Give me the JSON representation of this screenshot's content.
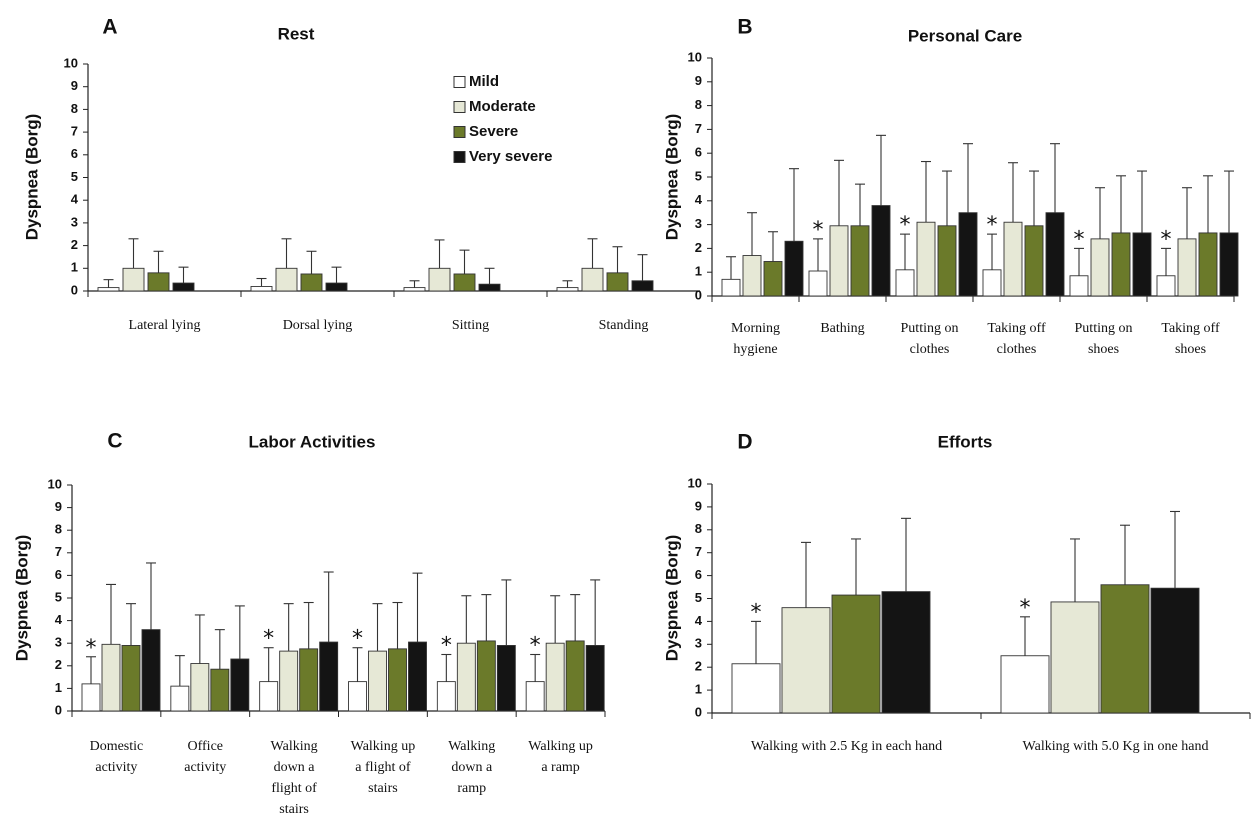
{
  "legend": {
    "entries": [
      {
        "label": "Mild",
        "color": "#ffffff"
      },
      {
        "label": "Moderate",
        "color": "#e6e8d6"
      },
      {
        "label": "Severe",
        "color": "#6b7a2a"
      },
      {
        "label": "Very severe",
        "color": "#141414"
      }
    ]
  },
  "chart_data": [
    {
      "type": "bar",
      "panel": "A",
      "title": "Rest",
      "ylabel": "Dyspnea (Borg)",
      "ylim": [
        0,
        10
      ],
      "yticks": [
        "0",
        "1",
        "2",
        "3",
        "4",
        "5",
        "6",
        "7",
        "8",
        "9",
        "10"
      ],
      "categories": [
        [
          "Lateral lying"
        ],
        [
          "Dorsal lying"
        ],
        [
          "Sitting"
        ],
        [
          "Standing"
        ]
      ],
      "series": [
        {
          "name": "Mild",
          "values": [
            0.15,
            0.2,
            0.15,
            0.15
          ],
          "err": [
            0.35,
            0.35,
            0.3,
            0.3
          ]
        },
        {
          "name": "Moderate",
          "values": [
            1.0,
            1.0,
            1.0,
            1.0
          ],
          "err": [
            1.3,
            1.3,
            1.25,
            1.3
          ]
        },
        {
          "name": "Severe",
          "values": [
            0.8,
            0.75,
            0.75,
            0.8
          ],
          "err": [
            0.95,
            1.0,
            1.05,
            1.15
          ]
        },
        {
          "name": "Very severe",
          "values": [
            0.35,
            0.35,
            0.3,
            0.45
          ],
          "err": [
            0.7,
            0.7,
            0.7,
            1.15
          ]
        }
      ],
      "stars": [
        "",
        "",
        "",
        ""
      ]
    },
    {
      "type": "bar",
      "panel": "B",
      "title": "Personal Care",
      "ylabel": "Dyspnea (Borg)",
      "ylim": [
        0,
        10
      ],
      "yticks": [
        "0",
        "1",
        "2",
        "3",
        "4",
        "5",
        "6",
        "7",
        "8",
        "9",
        "10"
      ],
      "categories": [
        [
          "Morning",
          "hygiene"
        ],
        [
          "Bathing"
        ],
        [
          "Putting on",
          "clothes"
        ],
        [
          "Taking off",
          "clothes"
        ],
        [
          "Putting on",
          "shoes"
        ],
        [
          "Taking off",
          "shoes"
        ]
      ],
      "series": [
        {
          "name": "Mild",
          "values": [
            0.7,
            1.05,
            1.1,
            1.1,
            0.85,
            0.85
          ],
          "err": [
            0.95,
            1.35,
            1.5,
            1.5,
            1.15,
            1.15
          ]
        },
        {
          "name": "Moderate",
          "values": [
            1.7,
            2.95,
            3.1,
            3.1,
            2.4,
            2.4
          ],
          "err": [
            1.8,
            2.75,
            2.55,
            2.5,
            2.15,
            2.15
          ]
        },
        {
          "name": "Severe",
          "values": [
            1.45,
            2.95,
            2.95,
            2.95,
            2.65,
            2.65
          ],
          "err": [
            1.25,
            1.75,
            2.3,
            2.3,
            2.4,
            2.4
          ]
        },
        {
          "name": "Very severe",
          "values": [
            2.3,
            3.8,
            3.5,
            3.5,
            2.65,
            2.65
          ],
          "err": [
            3.05,
            2.95,
            2.9,
            2.9,
            2.6,
            2.6
          ]
        }
      ],
      "stars": [
        "",
        "*",
        "*",
        "*",
        "*",
        "*"
      ]
    },
    {
      "type": "bar",
      "panel": "C",
      "title": "Labor Activities",
      "ylabel": "Dyspnea (Borg)",
      "ylim": [
        0,
        10
      ],
      "yticks": [
        "0",
        "1",
        "2",
        "3",
        "4",
        "5",
        "6",
        "7",
        "8",
        "9",
        "10"
      ],
      "categories": [
        [
          "Domestic",
          "activity"
        ],
        [
          "Office",
          "activity"
        ],
        [
          "Walking",
          "down a",
          "flight of",
          "stairs"
        ],
        [
          "Walking up",
          "a flight of",
          "stairs"
        ],
        [
          "Walking",
          "down a",
          "ramp"
        ],
        [
          "Walking up",
          "a ramp"
        ]
      ],
      "series": [
        {
          "name": "Mild",
          "values": [
            1.2,
            1.1,
            1.3,
            1.3,
            1.3,
            1.3
          ],
          "err": [
            1.2,
            1.35,
            1.5,
            1.5,
            1.2,
            1.2
          ]
        },
        {
          "name": "Moderate",
          "values": [
            2.95,
            2.1,
            2.65,
            2.65,
            3.0,
            3.0
          ],
          "err": [
            2.65,
            2.15,
            2.1,
            2.1,
            2.1,
            2.1
          ]
        },
        {
          "name": "Severe",
          "values": [
            2.9,
            1.85,
            2.75,
            2.75,
            3.1,
            3.1
          ],
          "err": [
            1.85,
            1.75,
            2.05,
            2.05,
            2.05,
            2.05
          ]
        },
        {
          "name": "Very severe",
          "values": [
            3.6,
            2.3,
            3.05,
            3.05,
            2.9,
            2.9
          ],
          "err": [
            2.95,
            2.35,
            3.1,
            3.05,
            2.9,
            2.9
          ]
        }
      ],
      "stars": [
        "*",
        "",
        "*",
        "*",
        "*",
        "*"
      ]
    },
    {
      "type": "bar",
      "panel": "D",
      "title": "Efforts",
      "ylabel": "Dyspnea (Borg)",
      "ylim": [
        0,
        10
      ],
      "yticks": [
        "0",
        "1",
        "2",
        "3",
        "4",
        "5",
        "6",
        "7",
        "8",
        "9",
        "10"
      ],
      "categories": [
        [
          "Walking with 2.5 Kg in each hand"
        ],
        [
          "Walking with 5.0 Kg in one hand"
        ]
      ],
      "series": [
        {
          "name": "Mild",
          "values": [
            2.15,
            2.5
          ],
          "err": [
            1.85,
            1.7
          ]
        },
        {
          "name": "Moderate",
          "values": [
            4.6,
            4.85
          ],
          "err": [
            2.85,
            2.75
          ]
        },
        {
          "name": "Severe",
          "values": [
            5.15,
            5.6
          ],
          "err": [
            2.45,
            2.6
          ]
        },
        {
          "name": "Very severe",
          "values": [
            5.3,
            5.45
          ],
          "err": [
            3.2,
            3.35
          ]
        }
      ],
      "stars": [
        "*",
        "*"
      ]
    }
  ]
}
